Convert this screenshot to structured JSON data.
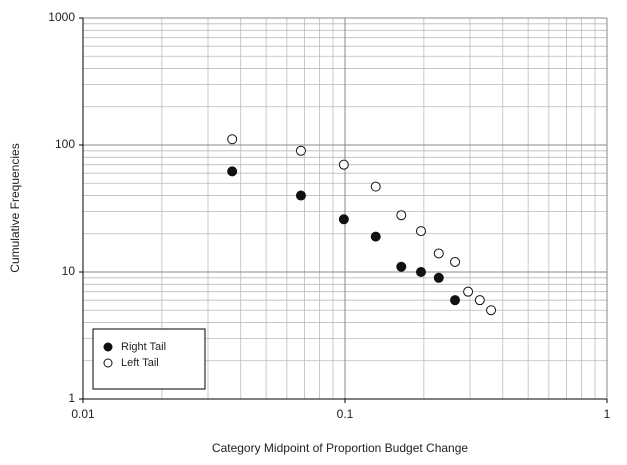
{
  "chart_data": {
    "type": "scatter",
    "x_label": "Category Midpoint of Proportion Budget Change",
    "y_label": "Cumulative Frequencies",
    "xscale": "log",
    "yscale": "log",
    "xlim": [
      0.01,
      1
    ],
    "ylim": [
      1,
      1000
    ],
    "xticks": [
      0.01,
      0.1,
      1
    ],
    "yticks": [
      1,
      10,
      100,
      1000
    ],
    "grid": true,
    "minor_grid": true,
    "legend": "lower left",
    "series": [
      {
        "name": "Right Tail",
        "color": "#111111",
        "fill": true,
        "x": [
          0.0371,
          0.0679,
          0.099,
          0.131,
          0.164,
          0.195,
          0.228,
          0.263
        ],
        "values": [
          62,
          40,
          26,
          19,
          11,
          10,
          9,
          6
        ]
      },
      {
        "name": "Left Tail",
        "color": "#111111",
        "fill": false,
        "x": [
          0.0371,
          0.0679,
          0.099,
          0.131,
          0.164,
          0.195,
          0.228,
          0.263,
          0.295,
          0.327,
          0.361
        ],
        "values": [
          111,
          90,
          70,
          47,
          28,
          21,
          14,
          12,
          7,
          6,
          5
        ]
      }
    ]
  }
}
